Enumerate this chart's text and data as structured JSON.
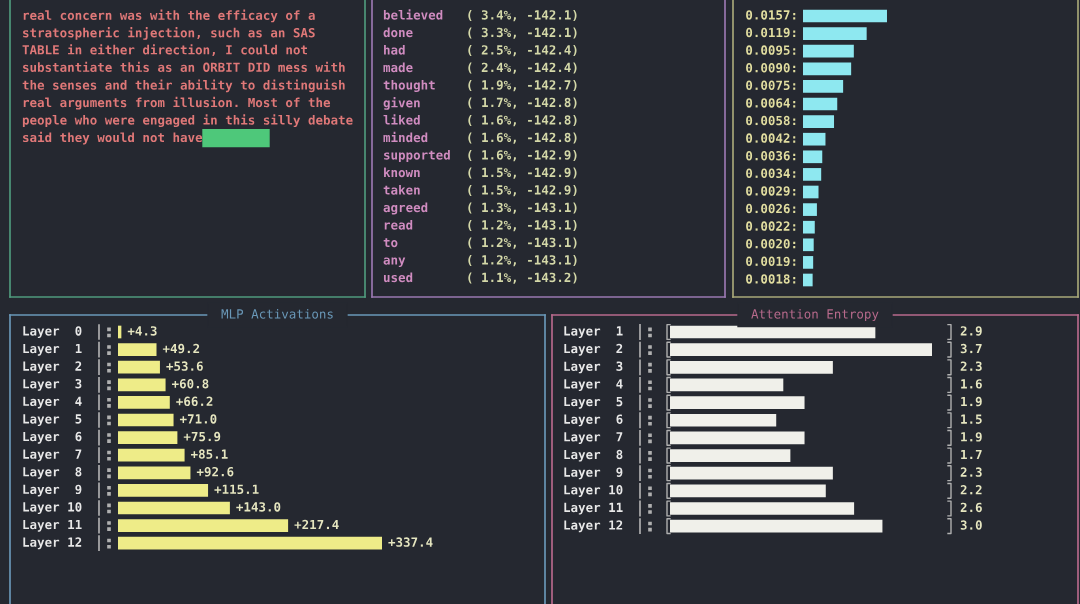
{
  "chart_data": [
    {
      "type": "other",
      "annotations": [
        "real concern was with the efficacy of a",
        "stratospheric injection, such as an SAS",
        "TABLE in either direction, I could not",
        "substantiate this as an ORBIT DID mess with",
        "the senses and their ability to distinguish",
        "real arguments from illusion. Most of the",
        "people who were engaged in this silly debate",
        "said they would not have"
      ]
    },
    {
      "type": "other",
      "categories": [
        "believed",
        "done",
        "had",
        "made",
        "thought",
        "given",
        "liked",
        "minded",
        "supported",
        "known",
        "taken",
        "agreed",
        "read",
        "to",
        "any",
        "used"
      ],
      "value_labels": [
        "( 3.4%, -142.1)",
        "( 3.3%, -142.1)",
        "( 2.5%, -142.4)",
        "( 2.4%, -142.4)",
        "( 1.9%, -142.7)",
        "( 1.7%, -142.8)",
        "( 1.6%, -142.8)",
        "( 1.6%, -142.8)",
        "( 1.6%, -142.9)",
        "( 1.5%, -142.9)",
        "( 1.5%, -142.9)",
        "( 1.3%, -143.1)",
        "( 1.2%, -143.1)",
        "( 1.2%, -143.1)",
        "( 1.2%, -143.1)",
        "( 1.1%, -143.2)"
      ]
    },
    {
      "type": "bar",
      "orientation": "horizontal",
      "color": "#8ee8f0",
      "categories": [
        null,
        null,
        null,
        null,
        null,
        null,
        null,
        null,
        null,
        null,
        null,
        null,
        null,
        null,
        null,
        null
      ],
      "values": [
        0.0157,
        0.0119,
        0.0095,
        0.009,
        0.0075,
        0.0064,
        0.0058,
        0.0042,
        0.0036,
        0.0034,
        0.0029,
        0.0026,
        0.0022,
        0.002,
        0.0019,
        0.0018
      ],
      "value_labels": [
        "0.0157:",
        "0.0119:",
        "0.0095:",
        "0.0090:",
        "0.0075:",
        "0.0064:",
        "0.0058:",
        "0.0042:",
        "0.0036:",
        "0.0034:",
        "0.0029:",
        "0.0026:",
        "0.0022:",
        "0.0020:",
        "0.0019:",
        "0.0018:"
      ]
    },
    {
      "type": "bar",
      "orientation": "horizontal",
      "title": "MLP Activations",
      "color": "#eeec88",
      "categories": [
        "Layer  0",
        "Layer  1",
        "Layer  2",
        "Layer  3",
        "Layer  4",
        "Layer  5",
        "Layer  6",
        "Layer  7",
        "Layer  8",
        "Layer  9",
        "Layer 10",
        "Layer 11",
        "Layer 12"
      ],
      "values": [
        4.3,
        49.2,
        53.6,
        60.8,
        66.2,
        71.0,
        75.9,
        85.1,
        92.6,
        115.1,
        143.0,
        217.4,
        337.4
      ],
      "value_labels": [
        "+4.3",
        "+49.2",
        "+53.6",
        "+60.8",
        "+66.2",
        "+71.0",
        "+75.9",
        "+85.1",
        "+92.6",
        "+115.1",
        "+143.0",
        "+217.4",
        "+337.4"
      ]
    },
    {
      "type": "bar",
      "orientation": "horizontal",
      "title": "Attention Entropy",
      "color": "#f0f0ea",
      "categories": [
        "Layer  1",
        "Layer  2",
        "Layer  3",
        "Layer  4",
        "Layer  5",
        "Layer  6",
        "Layer  7",
        "Layer  8",
        "Layer  9",
        "Layer 10",
        "Layer 11",
        "Layer 12"
      ],
      "values": [
        2.9,
        3.7,
        2.3,
        1.6,
        1.9,
        1.5,
        1.9,
        1.7,
        2.3,
        2.2,
        2.6,
        3.0
      ],
      "value_labels": [
        "2.9",
        "3.7",
        "2.3",
        "1.6",
        "1.9",
        "1.5",
        "1.9",
        "1.7",
        "2.3",
        "2.2",
        "2.6",
        "3.0"
      ]
    }
  ]
}
